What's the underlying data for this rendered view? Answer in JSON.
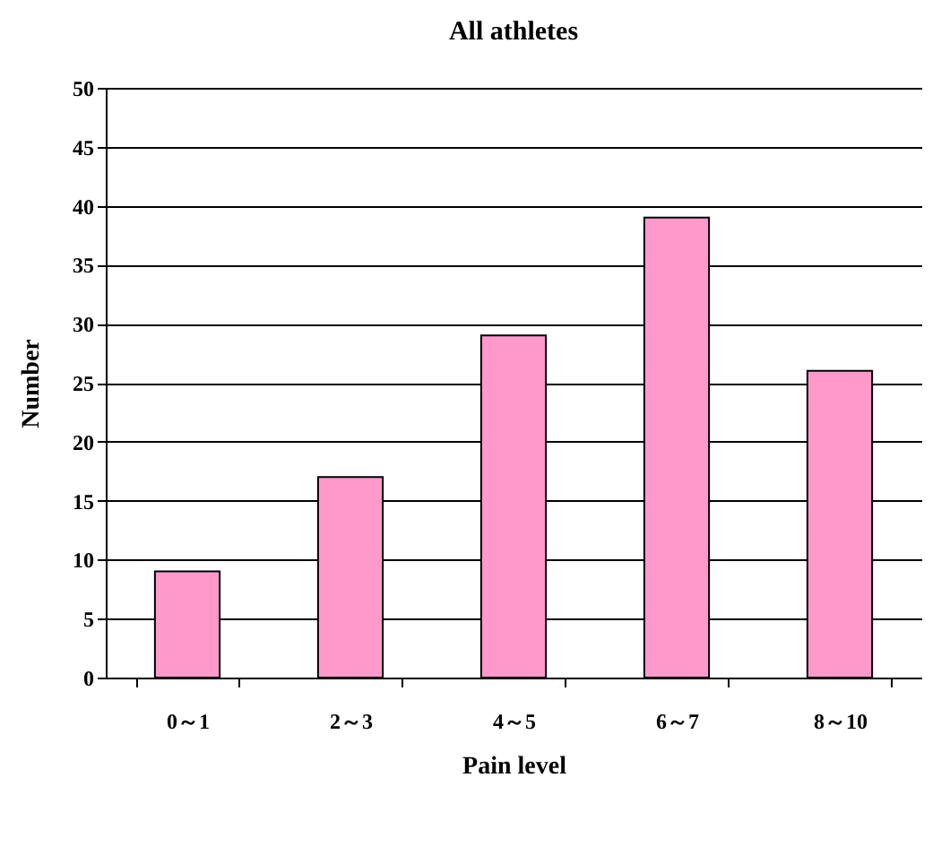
{
  "chart_data": {
    "type": "bar",
    "title": "All athletes",
    "xlabel": "Pain level",
    "ylabel": "Number",
    "categories": [
      "0～1",
      "2～3",
      "4～5",
      "6～7",
      "8～10"
    ],
    "values": [
      9,
      17,
      29,
      39,
      26
    ],
    "color": "#ff99cc",
    "ylim": [
      0,
      50
    ],
    "yticks": [
      0,
      5,
      10,
      15,
      20,
      25,
      30,
      35,
      40,
      45,
      50
    ],
    "grid": "y"
  }
}
